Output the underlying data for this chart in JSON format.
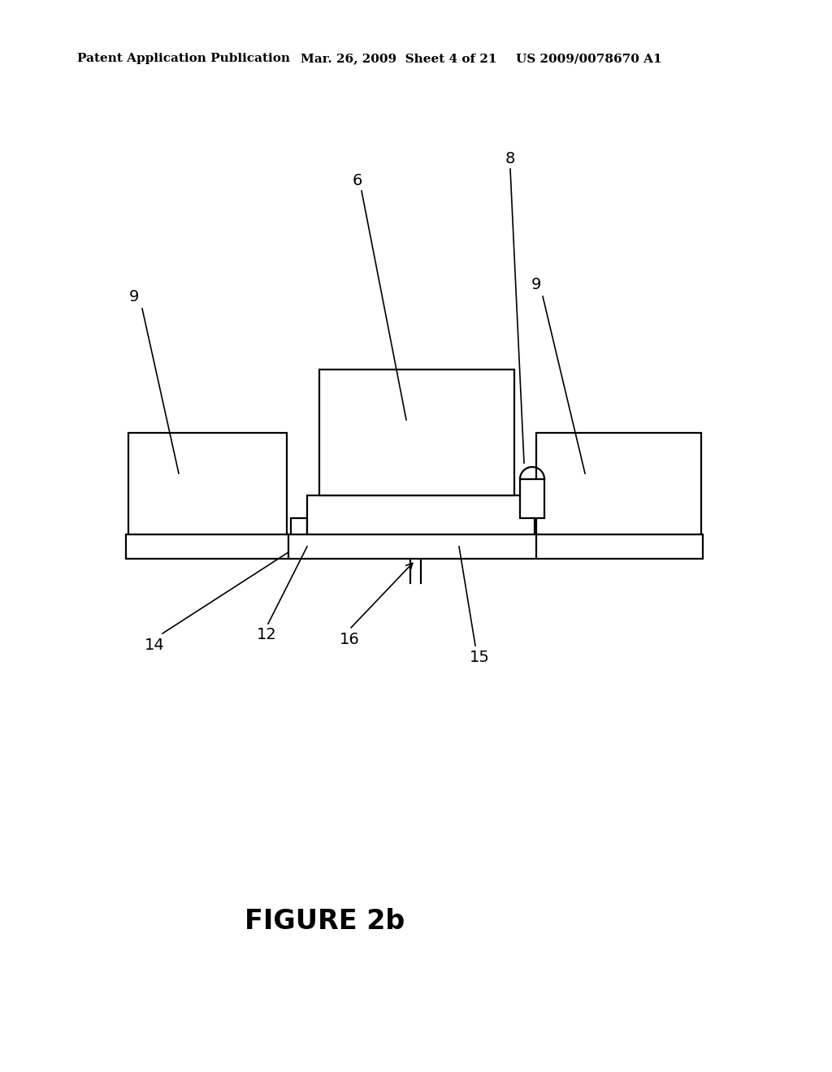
{
  "background_color": "#ffffff",
  "line_color": "#000000",
  "header_left": "Patent Application Publication",
  "header_mid": "Mar. 26, 2009  Sheet 4 of 21",
  "header_right": "US 2009/0078670 A1",
  "figure_caption": "FIGURE 2b"
}
